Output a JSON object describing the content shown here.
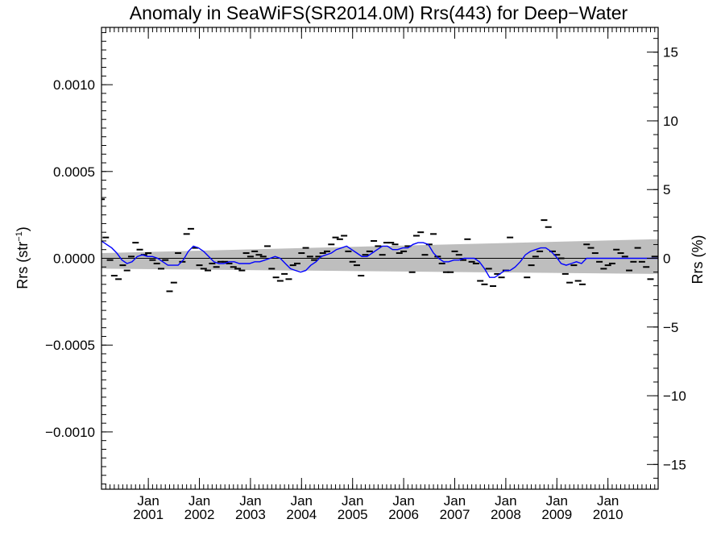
{
  "chart_data": {
    "type": "line",
    "title": "Anomaly in SeaWiFS(SR2014.0M) Rrs(443) for Deep−Water",
    "ylabel_left_main": "Rrs (str",
    "ylabel_left_sup": "−1",
    "ylabel_left_close": ")",
    "ylabel_right": "Rrs (%)",
    "xlim": [
      2000.0,
      2010.9
    ],
    "ylim_left": [
      -0.00133,
      0.00133
    ],
    "ylim_right": [
      -16.8,
      16.8
    ],
    "x_ticks": [
      {
        "x": 2000.917,
        "line1": "Jan",
        "line2": "2001"
      },
      {
        "x": 2001.917,
        "line1": "Jan",
        "line2": "2002"
      },
      {
        "x": 2002.917,
        "line1": "Jan",
        "line2": "2003"
      },
      {
        "x": 2003.917,
        "line1": "Jan",
        "line2": "2004"
      },
      {
        "x": 2004.917,
        "line1": "Jan",
        "line2": "2005"
      },
      {
        "x": 2005.917,
        "line1": "Jan",
        "line2": "2006"
      },
      {
        "x": 2006.917,
        "line1": "Jan",
        "line2": "2007"
      },
      {
        "x": 2007.917,
        "line1": "Jan",
        "line2": "2008"
      },
      {
        "x": 2008.917,
        "line1": "Jan",
        "line2": "2009"
      },
      {
        "x": 2009.917,
        "line1": "Jan",
        "line2": "2010"
      }
    ],
    "y_ticks_left": [
      {
        "v": 0.001,
        "label": "0.0010"
      },
      {
        "v": 0.0005,
        "label": "0.0005"
      },
      {
        "v": 0.0,
        "label": "0.0000"
      },
      {
        "v": -0.0005,
        "label": "−0.0005"
      },
      {
        "v": -0.001,
        "label": "−0.0010"
      }
    ],
    "y_ticks_right": [
      {
        "v": 15,
        "label": "15"
      },
      {
        "v": 10,
        "label": "10"
      },
      {
        "v": 5,
        "label": "5"
      },
      {
        "v": 0,
        "label": "0"
      },
      {
        "v": -5,
        "label": "−5"
      },
      {
        "v": -10,
        "label": "−10"
      },
      {
        "v": -15,
        "label": "−15"
      }
    ],
    "confidence_band": {
      "x": [
        2000.0,
        2010.9
      ],
      "upper": [
        3e-05,
        0.00011
      ],
      "lower": [
        -6e-05,
        -9e-05
      ],
      "color": "#bebebe"
    },
    "zero_line_color": "#000000",
    "monthly_anomalies": {
      "marker": "dash",
      "color": "#000000",
      "x": [
        2000.0,
        2000.083,
        2000.167,
        2000.25,
        2000.333,
        2000.417,
        2000.5,
        2000.583,
        2000.667,
        2000.75,
        2000.833,
        2000.917,
        2001.0,
        2001.083,
        2001.167,
        2001.25,
        2001.333,
        2001.417,
        2001.5,
        2001.583,
        2001.667,
        2001.75,
        2001.833,
        2001.917,
        2002.0,
        2002.083,
        2002.167,
        2002.25,
        2002.333,
        2002.417,
        2002.5,
        2002.583,
        2002.667,
        2002.75,
        2002.833,
        2002.917,
        2003.0,
        2003.083,
        2003.167,
        2003.25,
        2003.333,
        2003.417,
        2003.5,
        2003.583,
        2003.667,
        2003.75,
        2003.833,
        2003.917,
        2004.0,
        2004.083,
        2004.167,
        2004.25,
        2004.333,
        2004.417,
        2004.5,
        2004.583,
        2004.667,
        2004.75,
        2004.833,
        2004.917,
        2005.0,
        2005.083,
        2005.167,
        2005.25,
        2005.333,
        2005.417,
        2005.5,
        2005.583,
        2005.667,
        2005.75,
        2005.833,
        2005.917,
        2006.0,
        2006.083,
        2006.167,
        2006.25,
        2006.333,
        2006.417,
        2006.5,
        2006.583,
        2006.667,
        2006.75,
        2006.833,
        2006.917,
        2007.0,
        2007.083,
        2007.167,
        2007.25,
        2007.333,
        2007.417,
        2007.5,
        2007.583,
        2007.667,
        2007.75,
        2007.833,
        2007.917,
        2008.0,
        2008.333,
        2008.417,
        2008.5,
        2008.583,
        2008.667,
        2008.75,
        2008.833,
        2008.917,
        2009.0,
        2009.083,
        2009.167,
        2009.25,
        2009.333,
        2009.417,
        2009.5,
        2009.583,
        2009.667,
        2009.75,
        2009.833,
        2009.917,
        2010.0,
        2010.083,
        2010.167,
        2010.25,
        2010.333,
        2010.417,
        2010.5,
        2010.583,
        2010.667,
        2010.75,
        2010.833
      ],
      "y": [
        0.00034,
        0.00012,
        -1e-05,
        -0.0001,
        -0.00012,
        -4e-05,
        -7e-05,
        1e-05,
        9e-05,
        5e-05,
        2e-05,
        3e-05,
        -1e-05,
        -3e-05,
        -6e-05,
        -1e-05,
        -0.00019,
        -0.00014,
        3e-05,
        -2e-05,
        0.00014,
        0.00017,
        6e-05,
        -4e-05,
        -6e-05,
        -7e-05,
        -3e-05,
        -5e-05,
        -2e-05,
        -2e-05,
        -3e-05,
        -5e-05,
        -6e-05,
        -7e-05,
        3e-05,
        1e-05,
        4e-05,
        2e-05,
        1e-05,
        7e-05,
        -6e-05,
        -0.00011,
        -0.00013,
        -9e-05,
        -0.00012,
        -4e-05,
        -3e-05,
        3e-05,
        6e-05,
        1e-05,
        -1e-05,
        1e-05,
        3e-05,
        4e-05,
        8e-05,
        0.00012,
        0.00011,
        0.00013,
        4e-05,
        -2e-05,
        -4e-05,
        -0.0001,
        2e-05,
        4e-05,
        0.0001,
        7e-05,
        2e-05,
        9e-05,
        9e-05,
        8e-05,
        3e-05,
        4e-05,
        7e-05,
        -8e-05,
        0.00013,
        0.00015,
        2e-05,
        8e-05,
        0.00014,
        1e-05,
        -3e-05,
        -8e-05,
        -8e-05,
        4e-05,
        2e-05,
        -1e-05,
        0.00011,
        -2e-05,
        -3e-05,
        -0.00013,
        -0.00015,
        -6e-05,
        -0.00016,
        -9e-05,
        -0.00011,
        -7e-05,
        0.00012,
        -0.00011,
        -4e-05,
        1e-05,
        4e-05,
        0.00022,
        0.00018,
        4e-05,
        2e-05,
        0.0,
        -9e-05,
        -0.00014,
        -4e-05,
        -0.00013,
        -0.00015,
        8e-05,
        6e-05,
        3e-05,
        -2e-05,
        -6e-05,
        -4e-05,
        -3e-05,
        5e-05,
        3e-05,
        1e-05,
        -7e-05,
        -2e-05,
        6e-05,
        -2e-05,
        -5e-05,
        -0.00012,
        1e-05
      ],
      "note_range": "x increments roughly monthly"
    },
    "smoothed_series": {
      "color": "#0000ff",
      "x": [
        2000.0,
        2000.1,
        2000.2,
        2000.3,
        2000.4,
        2000.5,
        2000.6,
        2000.7,
        2000.8,
        2000.9,
        2001.0,
        2001.1,
        2001.2,
        2001.3,
        2001.4,
        2001.5,
        2001.6,
        2001.7,
        2001.8,
        2001.9,
        2002.0,
        2002.1,
        2002.2,
        2002.3,
        2002.4,
        2002.5,
        2002.6,
        2002.7,
        2002.8,
        2002.9,
        2003.0,
        2003.1,
        2003.2,
        2003.3,
        2003.4,
        2003.5,
        2003.6,
        2003.7,
        2003.8,
        2003.9,
        2004.0,
        2004.1,
        2004.2,
        2004.3,
        2004.4,
        2004.5,
        2004.6,
        2004.7,
        2004.8,
        2004.9,
        2005.0,
        2005.1,
        2005.2,
        2005.3,
        2005.4,
        2005.5,
        2005.6,
        2005.7,
        2005.8,
        2005.9,
        2006.0,
        2006.1,
        2006.2,
        2006.3,
        2006.4,
        2006.5,
        2006.6,
        2006.7,
        2006.8,
        2006.9,
        2007.0,
        2007.1,
        2007.2,
        2007.3,
        2007.4,
        2007.5,
        2007.6,
        2007.7,
        2007.8,
        2007.9,
        2008.0,
        2008.1,
        2008.2,
        2008.3,
        2008.4,
        2008.5,
        2008.6,
        2008.7,
        2008.8,
        2008.9,
        2009.0,
        2009.1,
        2009.2,
        2009.3,
        2009.4,
        2009.5,
        2009.6,
        2009.7,
        2009.8,
        2009.9,
        2010.0,
        2010.1,
        2010.2,
        2010.3,
        2010.4,
        2010.5,
        2010.6,
        2010.7,
        2010.8,
        2010.9
      ],
      "y": [
        0.0001,
        8e-05,
        6e-05,
        3e-05,
        -1e-05,
        -3e-05,
        -2e-05,
        1e-05,
        2e-05,
        1e-05,
        1e-05,
        0.0,
        -2e-05,
        -4e-05,
        -4e-05,
        -4e-05,
        -1e-05,
        4e-05,
        7e-05,
        6e-05,
        4e-05,
        1e-05,
        -2e-05,
        -3e-05,
        -3e-05,
        -2e-05,
        -2e-05,
        -3e-05,
        -3e-05,
        -3e-05,
        -2e-05,
        -2e-05,
        -1e-05,
        0.0,
        1e-05,
        0.0,
        -3e-05,
        -6e-05,
        -7e-05,
        -8e-05,
        -7e-05,
        -4e-05,
        -2e-05,
        1e-05,
        2e-05,
        3e-05,
        5e-05,
        6e-05,
        7e-05,
        5e-05,
        3e-05,
        1e-05,
        1e-05,
        3e-05,
        5e-05,
        7e-05,
        7e-05,
        5e-05,
        5e-05,
        6e-05,
        6e-05,
        8e-05,
        9e-05,
        9e-05,
        8e-05,
        3e-05,
        0.0,
        -2e-05,
        -2e-05,
        -1e-05,
        -1e-05,
        0.0,
        0.0,
        0.0,
        -2e-05,
        -6e-05,
        -0.00011,
        -0.00011,
        -9e-05,
        -7e-05,
        -7e-05,
        -5e-05,
        -2e-05,
        2e-05,
        4e-05,
        5e-05,
        6e-05,
        6e-05,
        4e-05,
        1e-05,
        -3e-05,
        -4e-05,
        -3e-05,
        -2e-05,
        -3e-05,
        0.0,
        0.0,
        0.0,
        0.0,
        0.0,
        0.0,
        0.0,
        0.0,
        0.0,
        0.0,
        0.0,
        0.0,
        0.0,
        0.0,
        0.0
      ]
    },
    "grid": false
  }
}
